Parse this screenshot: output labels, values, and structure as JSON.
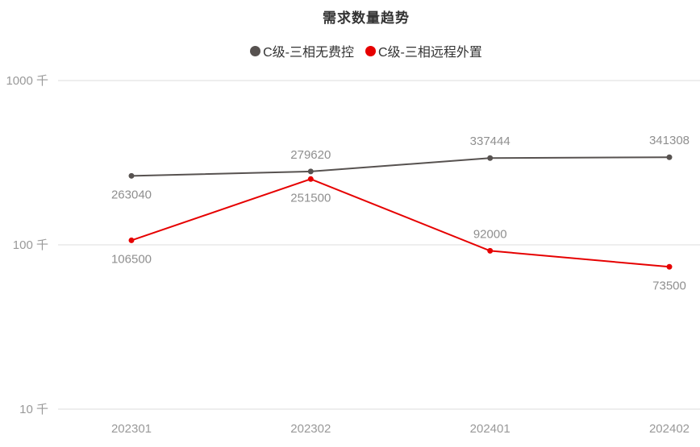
{
  "title": "需求数量趋势",
  "legend": {
    "items": [
      {
        "label": "C级-三相无费控",
        "color": "#575250"
      },
      {
        "label": "C级-三相远程外置",
        "color": "#e60000"
      }
    ]
  },
  "chart_data": {
    "type": "line",
    "title": "需求数量趋势",
    "x": [
      "202301",
      "202302",
      "202401",
      "202402"
    ],
    "series": [
      {
        "name": "C级-三相无费控",
        "color": "#575250",
        "values": [
          263040,
          279620,
          337444,
          341308
        ],
        "label_positions": [
          "below",
          "above",
          "above",
          "above"
        ]
      },
      {
        "name": "C级-三相远程外置",
        "color": "#e60000",
        "values": [
          106500,
          251500,
          92000,
          73500
        ],
        "label_positions": [
          "below",
          "below",
          "above",
          "below"
        ]
      }
    ],
    "yaxis": {
      "scale": "log",
      "ticks": [
        {
          "value": 10000,
          "label": "10 千"
        },
        {
          "value": 100000,
          "label": "100 千"
        },
        {
          "value": 1000000,
          "label": "1000 千"
        }
      ],
      "range": [
        10000,
        1000000
      ]
    },
    "grid": true,
    "legend_position": "top",
    "label_color": "#8f8f8f",
    "axis_label_color": "#999999",
    "gridline_color": "#e8e8e8"
  }
}
